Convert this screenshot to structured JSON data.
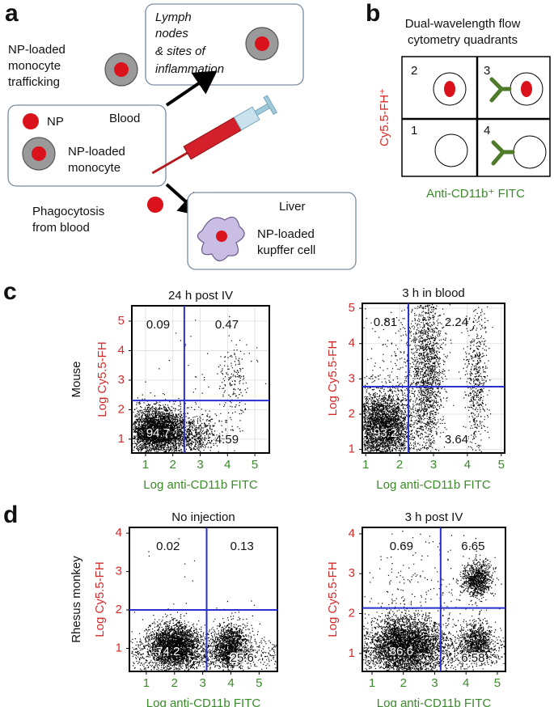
{
  "panels": {
    "a": {
      "label": "a",
      "trafficking": [
        "NP-loaded",
        "monocyte",
        "trafficking"
      ],
      "lymph": [
        "Lymph",
        "nodes",
        "& sites of",
        "inflammation"
      ],
      "np": "NP",
      "blood": "Blood",
      "monocyte": [
        "NP-loaded",
        "monocyte"
      ],
      "phagocytosis": [
        "Phagocytosis",
        "from blood"
      ],
      "liver": "Liver",
      "kupffer": [
        "NP-loaded",
        "kupffer cell"
      ]
    },
    "b": {
      "label": "b",
      "title": [
        "Dual-wavelength flow",
        "cytometry quadrants"
      ],
      "quadrants": [
        "2",
        "3",
        "1",
        "4"
      ],
      "ylabel": "Cy5.5-FH⁺",
      "xlabel": "Anti-CD11b⁺ FITC"
    },
    "c": {
      "label": "c",
      "row_label": "Mouse",
      "plots": [
        {
          "title": "24 h post IV",
          "xlabel": "Log anti-CD11b FITC",
          "ylabel": "Log Cy5.5-FH",
          "xlim": [
            0.5,
            5.53
          ],
          "ylim": [
            0.53,
            5.52
          ],
          "xticks": [
            1,
            2,
            3,
            4,
            5
          ],
          "yticks": [
            1,
            2,
            3,
            4,
            5
          ],
          "grid": true,
          "gate": {
            "x": 2.42,
            "y": 2.31
          },
          "quadrants": {
            "upper_left": 0.09,
            "upper_right": 0.47,
            "lower_left": 94.7,
            "lower_right": 4.59
          }
        },
        {
          "title": "3 h in blood",
          "xlabel": "Log anti-CD11b FITC",
          "ylabel": "Log Cy5.5-FH",
          "xlim": [
            0.9,
            5.1
          ],
          "ylim": [
            0.9,
            5.14
          ],
          "xticks": [
            1,
            2,
            3,
            4,
            5
          ],
          "yticks": [
            1,
            2,
            3,
            4,
            5
          ],
          "grid": true,
          "gate": {
            "x": 2.26,
            "y": 2.78
          },
          "quadrants": {
            "upper_left": 0.81,
            "upper_right": 2.24,
            "lower_left": 93.2,
            "lower_right": 3.64
          }
        }
      ]
    },
    "d": {
      "label": "d",
      "row_label": "Rhesus monkey",
      "plots": [
        {
          "title": "No injection",
          "xlabel": "Log anti-CD11b FITC",
          "ylabel": "Log Cy5.5-FH",
          "xlim": [
            0.4,
            5.65
          ],
          "ylim": [
            0.4,
            4.15
          ],
          "xticks": [
            1,
            2,
            3,
            4,
            5
          ],
          "yticks": [
            1,
            2,
            3,
            4
          ],
          "grid": false,
          "gate": {
            "x": 3.14,
            "y": 2.0
          },
          "quadrants": {
            "upper_left": 0.02,
            "upper_right": 0.13,
            "lower_left": 74.2,
            "lower_right": 25.6
          }
        },
        {
          "title": "3 h post IV",
          "xlabel": "Log anti-CD11b FITC",
          "ylabel": "Log Cy5.5-FH",
          "xlim": [
            0.69,
            5.26
          ],
          "ylim": [
            0.55,
            4.16
          ],
          "xticks": [
            1,
            2,
            3,
            4,
            5
          ],
          "yticks": [
            1,
            2,
            3,
            4
          ],
          "grid": false,
          "gate": {
            "x": 3.19,
            "y": 2.14
          },
          "quadrants": {
            "upper_left": 0.69,
            "upper_right": 6.65,
            "lower_left": 86.6,
            "lower_right": 6.58
          }
        }
      ]
    }
  }
}
